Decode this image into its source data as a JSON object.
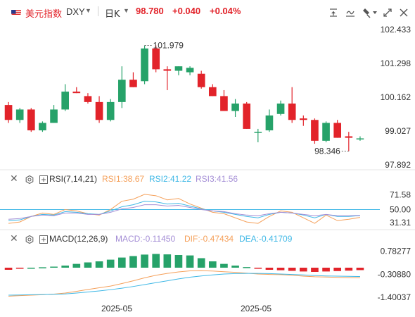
{
  "header": {
    "symbol_name": "美元指数",
    "symbol_code": "DXY",
    "period": "日K",
    "price": "98.780",
    "change": "+0.040",
    "change_pct": "+0.04%",
    "toolbar_icons": [
      "indicator-icon",
      "draw-line-icon",
      "drawing-tools-icon",
      "more-tools-icon",
      "fullscreen-icon",
      "close-icon"
    ]
  },
  "colors": {
    "up": "#26a269",
    "down": "#e2232a",
    "accent": "#e2232a",
    "rsi1": "#f5a05a",
    "rsi2": "#3fb8e6",
    "rsi3": "#a58fd6",
    "dif": "#f5a05a",
    "dea": "#3fb8e6"
  },
  "chart_data": [
    {
      "type": "candlestick",
      "title": "美元指数 DXY 日K",
      "y_ticks": [
        "102.433",
        "101.298",
        "100.162",
        "99.027",
        "97.892"
      ],
      "ylim": [
        97.892,
        102.433
      ],
      "annotations": {
        "high": "101.979",
        "low": "98.346"
      },
      "x_ticks": [
        "2025-05",
        "2025-05"
      ],
      "candles": [
        {
          "o": 99.9,
          "h": 100.0,
          "l": 99.3,
          "c": 99.4
        },
        {
          "o": 99.4,
          "h": 99.8,
          "l": 99.3,
          "c": 99.75
        },
        {
          "o": 99.75,
          "h": 99.8,
          "l": 99.0,
          "c": 99.05
        },
        {
          "o": 99.05,
          "h": 99.35,
          "l": 99.0,
          "c": 99.3
        },
        {
          "o": 99.3,
          "h": 99.9,
          "l": 99.3,
          "c": 99.75
        },
        {
          "o": 99.75,
          "h": 100.6,
          "l": 99.7,
          "c": 100.35
        },
        {
          "o": 100.35,
          "h": 100.5,
          "l": 100.3,
          "c": 100.3
        },
        {
          "o": 100.2,
          "h": 100.3,
          "l": 99.95,
          "c": 100.0
        },
        {
          "o": 100.0,
          "h": 100.2,
          "l": 99.3,
          "c": 99.4
        },
        {
          "o": 99.4,
          "h": 100.1,
          "l": 99.35,
          "c": 100.0
        },
        {
          "o": 100.0,
          "h": 101.2,
          "l": 99.8,
          "c": 100.75
        },
        {
          "o": 100.75,
          "h": 101.0,
          "l": 100.5,
          "c": 100.5
        },
        {
          "o": 100.7,
          "h": 101.9,
          "l": 100.6,
          "c": 101.8
        },
        {
          "o": 101.8,
          "h": 101.9,
          "l": 101.0,
          "c": 101.1
        },
        {
          "o": 101.1,
          "h": 101.2,
          "l": 100.4,
          "c": 101.05
        },
        {
          "o": 101.05,
          "h": 101.2,
          "l": 100.9,
          "c": 101.2
        },
        {
          "o": 101.0,
          "h": 101.2,
          "l": 100.9,
          "c": 101.15
        },
        {
          "o": 100.95,
          "h": 101.05,
          "l": 100.45,
          "c": 100.5
        },
        {
          "o": 100.5,
          "h": 100.6,
          "l": 100.2,
          "c": 100.2
        },
        {
          "o": 100.2,
          "h": 100.4,
          "l": 99.7,
          "c": 99.7
        },
        {
          "o": 99.7,
          "h": 100.1,
          "l": 99.5,
          "c": 99.95
        },
        {
          "o": 99.95,
          "h": 100.0,
          "l": 99.1,
          "c": 99.1
        },
        {
          "o": 99.0,
          "h": 99.1,
          "l": 98.65,
          "c": 99.0
        },
        {
          "o": 99.05,
          "h": 99.75,
          "l": 99.0,
          "c": 99.55
        },
        {
          "o": 99.6,
          "h": 100.05,
          "l": 99.55,
          "c": 99.95
        },
        {
          "o": 99.95,
          "h": 100.5,
          "l": 99.3,
          "c": 99.4
        },
        {
          "o": 99.45,
          "h": 99.55,
          "l": 99.2,
          "c": 99.4
        },
        {
          "o": 99.4,
          "h": 99.45,
          "l": 98.6,
          "c": 98.7
        },
        {
          "o": 98.7,
          "h": 99.35,
          "l": 98.65,
          "c": 99.3
        },
        {
          "o": 99.3,
          "h": 99.4,
          "l": 98.8,
          "c": 98.8
        },
        {
          "o": 98.85,
          "h": 99.0,
          "l": 98.35,
          "c": 98.8
        },
        {
          "o": 98.75,
          "h": 98.85,
          "l": 98.7,
          "c": 98.78
        }
      ]
    },
    {
      "type": "line",
      "title": "RSI(7,14,21)",
      "values_label": {
        "rsi1": "RSI1:38.67",
        "rsi2": "RSI2:41.22",
        "rsi3": "RSI3:41.56"
      },
      "y_ticks": [
        "71.58",
        "50.00",
        "31.31"
      ],
      "ylim": [
        25,
        80
      ],
      "series": [
        {
          "name": "RSI1",
          "values": [
            30,
            32,
            40,
            45,
            43,
            50,
            48,
            44,
            42,
            50,
            62,
            65,
            72,
            70,
            64,
            66,
            58,
            52,
            46,
            44,
            38,
            32,
            30,
            40,
            48,
            46,
            38,
            30,
            42,
            34,
            36,
            38.67
          ]
        },
        {
          "name": "RSI2",
          "values": [
            34,
            35,
            40,
            43,
            42,
            47,
            46,
            44,
            43,
            48,
            54,
            57,
            62,
            61,
            58,
            59,
            55,
            51,
            48,
            46,
            43,
            40,
            38,
            43,
            46,
            45,
            42,
            38,
            43,
            40,
            40,
            41.22
          ]
        },
        {
          "name": "RSI3",
          "values": [
            36,
            37,
            40,
            42,
            41,
            45,
            45,
            43,
            43,
            46,
            51,
            53,
            57,
            57,
            55,
            56,
            53,
            50,
            48,
            47,
            44,
            42,
            41,
            44,
            46,
            45,
            43,
            41,
            43,
            41,
            41,
            41.56
          ]
        }
      ]
    },
    {
      "type": "bar",
      "title": "MACD(12,26,9)",
      "values_label": {
        "macd": "MACD:-0.11450",
        "dif": "DIF:-0.47434",
        "dea": "DEA:-0.41709"
      },
      "y_ticks": [
        "0.78277",
        "-0.30880",
        "-1.40037"
      ],
      "ylim": [
        -1.40037,
        1.0
      ],
      "series": [
        {
          "name": "MACD",
          "values": [
            -0.1,
            -0.05,
            0.0,
            0.02,
            0.05,
            0.1,
            0.18,
            0.25,
            0.3,
            0.38,
            0.48,
            0.55,
            0.62,
            0.65,
            0.63,
            0.6,
            0.58,
            0.45,
            0.3,
            0.18,
            0.1,
            0.03,
            -0.05,
            -0.1,
            -0.12,
            -0.15,
            -0.18,
            -0.2,
            -0.18,
            -0.16,
            -0.14,
            -0.1145
          ]
        },
        {
          "name": "DIF",
          "values": [
            -1.35,
            -1.32,
            -1.3,
            -1.28,
            -1.25,
            -1.2,
            -1.12,
            -1.03,
            -0.95,
            -0.87,
            -0.75,
            -0.62,
            -0.48,
            -0.36,
            -0.27,
            -0.2,
            -0.15,
            -0.14,
            -0.16,
            -0.19,
            -0.22,
            -0.26,
            -0.3,
            -0.32,
            -0.33,
            -0.36,
            -0.4,
            -0.43,
            -0.44,
            -0.46,
            -0.47,
            -0.47434
          ]
        },
        {
          "name": "DEA",
          "values": [
            -1.3,
            -1.29,
            -1.28,
            -1.27,
            -1.26,
            -1.24,
            -1.2,
            -1.15,
            -1.1,
            -1.04,
            -0.97,
            -0.89,
            -0.8,
            -0.71,
            -0.62,
            -0.53,
            -0.45,
            -0.39,
            -0.34,
            -0.3,
            -0.28,
            -0.27,
            -0.27,
            -0.28,
            -0.3,
            -0.32,
            -0.34,
            -0.37,
            -0.39,
            -0.4,
            -0.41,
            -0.41709
          ]
        }
      ]
    }
  ]
}
